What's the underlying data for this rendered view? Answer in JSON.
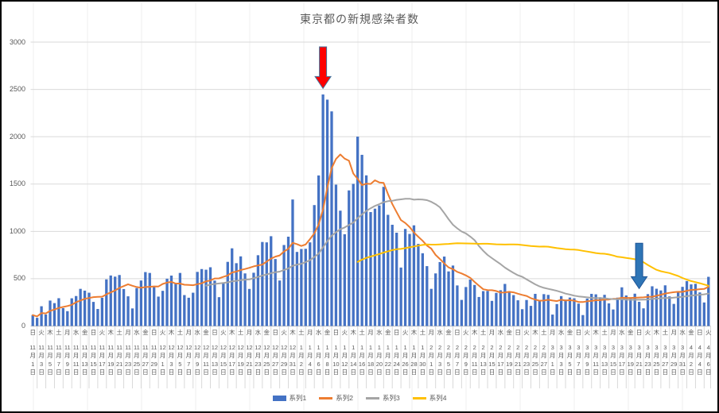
{
  "chart_data": {
    "type": "combo",
    "title": "東京都の新規感染者数",
    "y_axis": {
      "max": 3000,
      "min": 0,
      "ticks": [
        0,
        500,
        1000,
        1500,
        2000,
        2500,
        3000
      ]
    },
    "x_axis": {
      "label_interval_days": 2,
      "labels": [
        [
          "日",
          "11",
          "月",
          "1",
          "日"
        ],
        [
          "火",
          "11",
          "月",
          "3",
          "日"
        ],
        [
          "木",
          "11",
          "月",
          "5",
          "日"
        ],
        [
          "土",
          "11",
          "月",
          "7",
          "日"
        ],
        [
          "月",
          "11",
          "月",
          "9",
          "日"
        ],
        [
          "水",
          "11",
          "月",
          "11",
          "日"
        ],
        [
          "金",
          "11",
          "月",
          "13",
          "日"
        ],
        [
          "日",
          "11",
          "月",
          "15",
          "日"
        ],
        [
          "火",
          "11",
          "月",
          "17",
          "日"
        ],
        [
          "木",
          "11",
          "月",
          "19",
          "日"
        ],
        [
          "土",
          "11",
          "月",
          "21",
          "日"
        ],
        [
          "月",
          "11",
          "月",
          "23",
          "日"
        ],
        [
          "水",
          "11",
          "月",
          "25",
          "日"
        ],
        [
          "金",
          "11",
          "月",
          "27",
          "日"
        ],
        [
          "日",
          "11",
          "月",
          "29",
          "日"
        ],
        [
          "火",
          "12",
          "月",
          "1",
          "日"
        ],
        [
          "木",
          "12",
          "月",
          "3",
          "日"
        ],
        [
          "土",
          "12",
          "月",
          "5",
          "日"
        ],
        [
          "月",
          "12",
          "月",
          "7",
          "日"
        ],
        [
          "水",
          "12",
          "月",
          "9",
          "日"
        ],
        [
          "金",
          "12",
          "月",
          "11",
          "日"
        ],
        [
          "日",
          "12",
          "月",
          "13",
          "日"
        ],
        [
          "火",
          "12",
          "月",
          "15",
          "日"
        ],
        [
          "木",
          "12",
          "月",
          "17",
          "日"
        ],
        [
          "土",
          "12",
          "月",
          "19",
          "日"
        ],
        [
          "月",
          "12",
          "月",
          "21",
          "日"
        ],
        [
          "水",
          "12",
          "月",
          "23",
          "日"
        ],
        [
          "金",
          "12",
          "月",
          "25",
          "日"
        ],
        [
          "日",
          "12",
          "月",
          "27",
          "日"
        ],
        [
          "火",
          "12",
          "月",
          "29",
          "日"
        ],
        [
          "木",
          "12",
          "月",
          "31",
          "日"
        ],
        [
          "土",
          "1",
          "月",
          "2",
          "日"
        ],
        [
          "月",
          "1",
          "月",
          "4",
          "日"
        ],
        [
          "水",
          "1",
          "月",
          "6",
          "日"
        ],
        [
          "金",
          "1",
          "月",
          "8",
          "日"
        ],
        [
          "日",
          "1",
          "月",
          "10",
          "日"
        ],
        [
          "火",
          "1",
          "月",
          "12",
          "日"
        ],
        [
          "木",
          "1",
          "月",
          "14",
          "日"
        ],
        [
          "土",
          "1",
          "月",
          "16",
          "日"
        ],
        [
          "月",
          "1",
          "月",
          "18",
          "日"
        ],
        [
          "水",
          "1",
          "月",
          "20",
          "日"
        ],
        [
          "金",
          "1",
          "月",
          "22",
          "日"
        ],
        [
          "日",
          "1",
          "月",
          "24",
          "日"
        ],
        [
          "火",
          "1",
          "月",
          "26",
          "日"
        ],
        [
          "木",
          "1",
          "月",
          "28",
          "日"
        ],
        [
          "土",
          "1",
          "月",
          "30",
          "日"
        ],
        [
          "月",
          "2",
          "月",
          "1",
          "日"
        ],
        [
          "水",
          "2",
          "月",
          "3",
          "日"
        ],
        [
          "金",
          "2",
          "月",
          "5",
          "日"
        ],
        [
          "日",
          "2",
          "月",
          "7",
          "日"
        ],
        [
          "火",
          "2",
          "月",
          "9",
          "日"
        ],
        [
          "木",
          "2",
          "月",
          "11",
          "日"
        ],
        [
          "土",
          "2",
          "月",
          "13",
          "日"
        ],
        [
          "月",
          "2",
          "月",
          "15",
          "日"
        ],
        [
          "水",
          "2",
          "月",
          "17",
          "日"
        ],
        [
          "金",
          "2",
          "月",
          "19",
          "日"
        ],
        [
          "日",
          "2",
          "月",
          "21",
          "日"
        ],
        [
          "火",
          "2",
          "月",
          "23",
          "日"
        ],
        [
          "木",
          "2",
          "月",
          "25",
          "日"
        ],
        [
          "土",
          "2",
          "月",
          "27",
          "日"
        ],
        [
          "月",
          "3",
          "月",
          "1",
          "日"
        ],
        [
          "水",
          "3",
          "月",
          "3",
          "日"
        ],
        [
          "金",
          "3",
          "月",
          "5",
          "日"
        ],
        [
          "日",
          "3",
          "月",
          "7",
          "日"
        ],
        [
          "火",
          "3",
          "月",
          "9",
          "日"
        ],
        [
          "木",
          "3",
          "月",
          "11",
          "日"
        ],
        [
          "土",
          "3",
          "月",
          "13",
          "日"
        ],
        [
          "月",
          "3",
          "月",
          "15",
          "日"
        ],
        [
          "水",
          "3",
          "月",
          "17",
          "日"
        ],
        [
          "金",
          "3",
          "月",
          "19",
          "日"
        ],
        [
          "日",
          "3",
          "月",
          "21",
          "日"
        ],
        [
          "火",
          "3",
          "月",
          "23",
          "日"
        ],
        [
          "木",
          "3",
          "月",
          "25",
          "日"
        ],
        [
          "土",
          "3",
          "月",
          "27",
          "日"
        ],
        [
          "月",
          "3",
          "月",
          "29",
          "日"
        ],
        [
          "水",
          "3",
          "月",
          "31",
          "日"
        ],
        [
          "金",
          "4",
          "月",
          "2",
          "日"
        ],
        [
          "日",
          "4",
          "月",
          "4",
          "日"
        ],
        [
          "火",
          "4",
          "月",
          "6",
          "日"
        ]
      ]
    },
    "series": [
      {
        "name": "系列1",
        "type": "bar",
        "color": "#4472C4",
        "values": [
          116,
          87,
          209,
          122,
          269,
          242,
          294,
          189,
          157,
          293,
          317,
          393,
          374,
          352,
          255,
          180,
          298,
          493,
          534,
          522,
          539,
          391,
          314,
          186,
          401,
          481,
          570,
          561,
          418,
          311,
          372,
          500,
          533,
          449,
          561,
          327,
          299,
          352,
          572,
          602,
          595,
          621,
          480,
          305,
          460,
          678,
          821,
          664,
          736,
          556,
          392,
          563,
          748,
          888,
          884,
          949,
          708,
          481,
          856,
          944,
          1337,
          783,
          814,
          816,
          884,
          1278,
          1591,
          2447,
          2392,
          2268,
          1494,
          1219,
          970,
          1433,
          1502,
          2001,
          1809,
          1592,
          1204,
          1240,
          1274,
          1471,
          1175,
          1070,
          986,
          618,
          1026,
          973,
          1064,
          868,
          769,
          633,
          393,
          556,
          676,
          734,
          577,
          639,
          429,
          276,
          412,
          491,
          434,
          307,
          369,
          371,
          266,
          350,
          378,
          445,
          353,
          327,
          272,
          178,
          275,
          213,
          340,
          270,
          337,
          329,
          121,
          232,
          316,
          279,
          301,
          293,
          237,
          116,
          290,
          340,
          335,
          304,
          330,
          239,
          175,
          300,
          409,
          323,
          303,
          342,
          256,
          187,
          337,
          420,
          394,
          376,
          430,
          313,
          234,
          364,
          414,
          475,
          440,
          446,
          355,
          249,
          520
        ]
      },
      {
        "name": "系列2",
        "type": "line",
        "color": "#ED7D31",
        "derived": {
          "method": "trailing_moving_average",
          "source": "系列1",
          "window": 7,
          "min_periods": 1,
          "start_index": 0
        }
      },
      {
        "name": "系列3",
        "type": "line",
        "color": "#A5A5A5",
        "derived": {
          "method": "trailing_moving_average",
          "source": "系列1",
          "window": 28,
          "start_index": 40
        }
      },
      {
        "name": "系列4",
        "type": "line",
        "color": "#FFC000",
        "derived": {
          "method": "trailing_moving_average",
          "source": "系列1",
          "window": 75,
          "start_index": 75
        }
      }
    ],
    "annotations": [
      {
        "name": "red-down-arrow",
        "day_index": 67,
        "value_top": 2950,
        "value_tip": 2510,
        "fill": "#FF0000",
        "outline": "#41719C"
      },
      {
        "name": "blue-down-arrow",
        "day_index": 140,
        "value_top": 875,
        "value_tip": 395,
        "fill": "#2E75B6",
        "outline": "#1F5597"
      }
    ],
    "legend": [
      {
        "label": "系列1",
        "marker": "bar",
        "color": "#4472C4"
      },
      {
        "label": "系列2",
        "marker": "line",
        "color": "#ED7D31"
      },
      {
        "label": "系列3",
        "marker": "line",
        "color": "#A5A5A5"
      },
      {
        "label": "系列4",
        "marker": "line",
        "color": "#FFC000"
      }
    ],
    "style": {
      "grid_color": "#D9D9D9",
      "axis_color": "#BFBFBF",
      "sheet_line_color": "#EFEFEF",
      "text_color": "#595959"
    }
  }
}
